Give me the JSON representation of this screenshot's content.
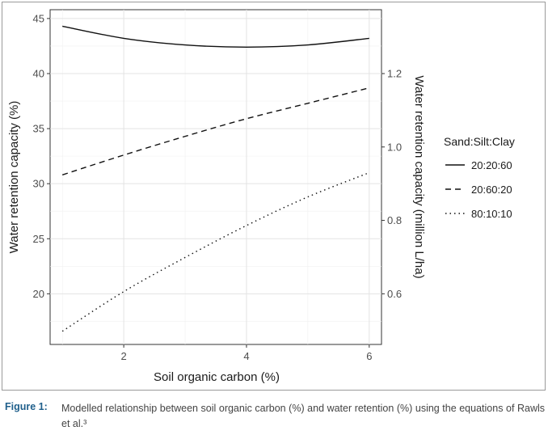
{
  "chart_data": {
    "type": "line",
    "xlabel": "Soil organic carbon (%)",
    "ylabel": "Water retention capacity (%)",
    "y2label": "Water retention capacity (million L/ha)",
    "xlim": [
      0.8,
      6.2
    ],
    "ylim": [
      15.4,
      45.8
    ],
    "y2lim": [
      0.462,
      1.374
    ],
    "x_ticks": [
      "2",
      "4",
      "6"
    ],
    "y_ticks": [
      "20",
      "25",
      "30",
      "35",
      "40",
      "45"
    ],
    "y2_ticks": [
      "0.6",
      "0.8",
      "1.0",
      "1.2"
    ],
    "grid": true,
    "legend_title": "Sand:Silt:Clay",
    "legend_position": "right",
    "series": [
      {
        "name": "20:20:60",
        "dash": "solid",
        "x": [
          1,
          2,
          3,
          4,
          5,
          6
        ],
        "y": [
          44.3,
          43.2,
          42.6,
          42.4,
          42.6,
          43.2
        ]
      },
      {
        "name": "20:60:20",
        "dash": "dashed",
        "x": [
          1,
          2,
          3,
          4,
          5,
          6
        ],
        "y": [
          30.8,
          32.6,
          34.3,
          35.9,
          37.3,
          38.7
        ]
      },
      {
        "name": "80:10:10",
        "dash": "dotted",
        "x": [
          1,
          2,
          3,
          4,
          5,
          6
        ],
        "y": [
          16.6,
          20.2,
          23.3,
          26.2,
          28.8,
          31.0
        ]
      }
    ]
  },
  "caption": {
    "label": "Figure 1:",
    "text": "Modelled relationship between soil organic carbon (%) and water retention (%) using the equations of Rawls et al.³"
  }
}
